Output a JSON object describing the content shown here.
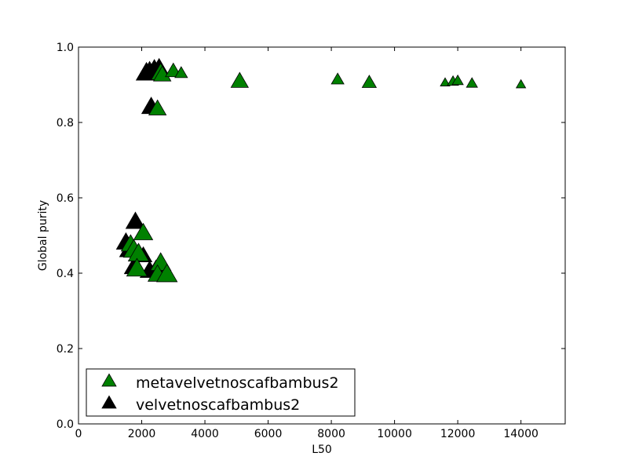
{
  "chart_data": {
    "type": "scatter",
    "title": "",
    "xlabel": "L50",
    "ylabel": "Global purity",
    "xlim": [
      0,
      15400
    ],
    "ylim": [
      0.0,
      1.0
    ],
    "x_ticks": [
      0,
      2000,
      4000,
      6000,
      8000,
      10000,
      12000,
      14000
    ],
    "y_ticks": [
      0.0,
      0.2,
      0.4,
      0.6,
      0.8,
      1.0
    ],
    "grid": false,
    "legend_position": "bottom-left",
    "marker": "triangle",
    "series": [
      {
        "name": "velvetnoscafbambus2",
        "color": "#000000",
        "points": [
          {
            "x": 2150,
            "y": 0.93,
            "s": 13
          },
          {
            "x": 2250,
            "y": 0.935,
            "s": 12
          },
          {
            "x": 2400,
            "y": 0.94,
            "s": 12
          },
          {
            "x": 2550,
            "y": 0.945,
            "s": 11
          },
          {
            "x": 2300,
            "y": 0.84,
            "s": 12
          },
          {
            "x": 1500,
            "y": 0.48,
            "s": 12
          },
          {
            "x": 1800,
            "y": 0.535,
            "s": 12
          },
          {
            "x": 1600,
            "y": 0.46,
            "s": 12
          },
          {
            "x": 1750,
            "y": 0.415,
            "s": 12
          },
          {
            "x": 2050,
            "y": 0.445,
            "s": 11
          },
          {
            "x": 2250,
            "y": 0.405,
            "s": 12
          },
          {
            "x": 2450,
            "y": 0.41,
            "s": 11
          }
        ]
      },
      {
        "name": "metavelvetnoscafbambus2",
        "color": "#008000",
        "points": [
          {
            "x": 2600,
            "y": 0.93,
            "s": 12
          },
          {
            "x": 2650,
            "y": 0.925,
            "s": 11
          },
          {
            "x": 3000,
            "y": 0.935,
            "s": 10
          },
          {
            "x": 3250,
            "y": 0.93,
            "s": 8
          },
          {
            "x": 2500,
            "y": 0.835,
            "s": 11
          },
          {
            "x": 5100,
            "y": 0.908,
            "s": 11
          },
          {
            "x": 8200,
            "y": 0.913,
            "s": 8
          },
          {
            "x": 9200,
            "y": 0.905,
            "s": 9
          },
          {
            "x": 11600,
            "y": 0.905,
            "s": 6
          },
          {
            "x": 11850,
            "y": 0.908,
            "s": 7
          },
          {
            "x": 12000,
            "y": 0.91,
            "s": 7
          },
          {
            "x": 12450,
            "y": 0.903,
            "s": 7
          },
          {
            "x": 14000,
            "y": 0.9,
            "s": 6
          },
          {
            "x": 2050,
            "y": 0.505,
            "s": 12
          },
          {
            "x": 1650,
            "y": 0.475,
            "s": 12
          },
          {
            "x": 1750,
            "y": 0.46,
            "s": 13
          },
          {
            "x": 1900,
            "y": 0.45,
            "s": 13
          },
          {
            "x": 1850,
            "y": 0.41,
            "s": 13
          },
          {
            "x": 2600,
            "y": 0.425,
            "s": 13
          },
          {
            "x": 2500,
            "y": 0.395,
            "s": 12
          },
          {
            "x": 2800,
            "y": 0.395,
            "s": 13
          }
        ]
      }
    ],
    "legend": [
      {
        "label": "metavelvetnoscafbambus2",
        "color": "#008000"
      },
      {
        "label": "velvetnoscafbambus2",
        "color": "#000000"
      }
    ]
  }
}
